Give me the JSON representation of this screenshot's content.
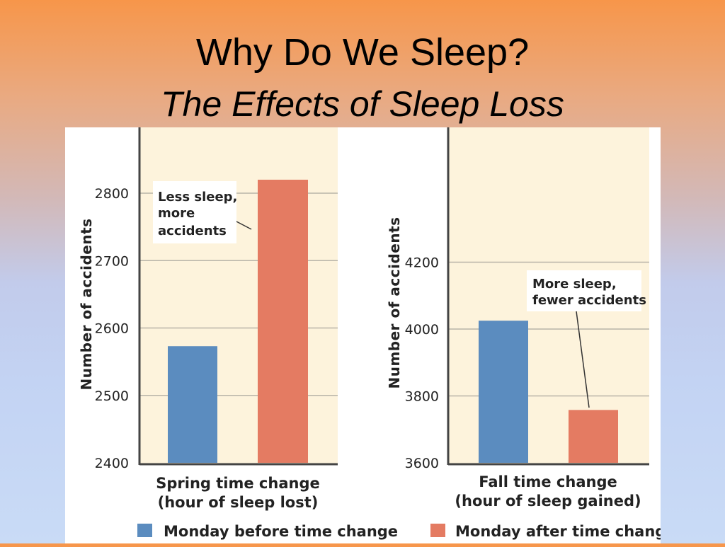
{
  "slide": {
    "title": "Why Do We Sleep?",
    "subtitle": "The Effects of Sleep Loss"
  },
  "colors": {
    "blue": "#5b8cbf",
    "salmon": "#e47b62",
    "plot_bg": "#fdf3dc",
    "grid": "#b8b4a8",
    "axis": "#444444"
  },
  "chart_data": [
    {
      "type": "bar",
      "ylabel": "Number of accidents",
      "xlabel_lines": [
        "Spring time change",
        "(hour of sleep lost)"
      ],
      "ylim": [
        2400,
        2900
      ],
      "yticks": [
        2400,
        2500,
        2600,
        2700,
        2800
      ],
      "grid": true,
      "series": [
        {
          "name": "Monday before time change",
          "values": [
            2573
          ]
        },
        {
          "name": "Monday after time change",
          "values": [
            2820
          ]
        }
      ],
      "annotation": {
        "lines": [
          "Less sleep,",
          "more",
          "accidents"
        ]
      }
    },
    {
      "type": "bar",
      "ylabel": "Number of accidents",
      "xlabel_lines": [
        "Fall time change",
        "(hour of sleep gained)"
      ],
      "ylim": [
        3600,
        4400
      ],
      "yticks": [
        3600,
        3800,
        4000,
        4200
      ],
      "grid": true,
      "series": [
        {
          "name": "Monday before time change",
          "values": [
            4025
          ]
        },
        {
          "name": "Monday after time change",
          "values": [
            3758
          ]
        }
      ],
      "annotation": {
        "lines": [
          "More sleep,",
          "fewer accidents"
        ]
      }
    }
  ],
  "legend": [
    {
      "label": "Monday before time change",
      "color": "#5b8cbf"
    },
    {
      "label": "Monday after time change",
      "color": "#e47b62"
    }
  ]
}
